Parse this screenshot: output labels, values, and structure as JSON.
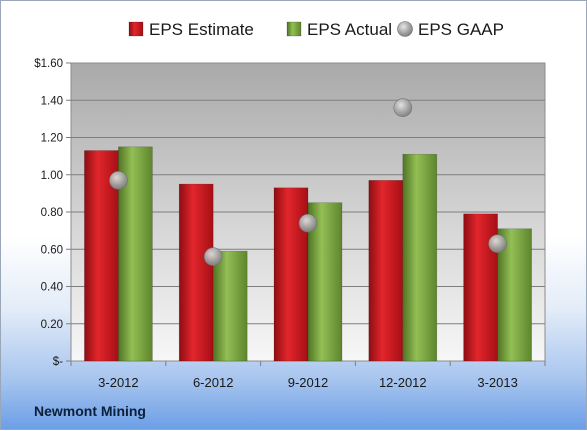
{
  "company_label": "Newmont Mining",
  "chart_data": {
    "type": "bar",
    "title": "",
    "xlabel": "",
    "ylabel": "",
    "categories": [
      "3-2012",
      "6-2012",
      "9-2012",
      "12-2012",
      "3-2013"
    ],
    "series": [
      {
        "name": "EPS Estimate",
        "kind": "bar",
        "color": "#c8161d",
        "values": [
          1.13,
          0.95,
          0.93,
          0.97,
          0.79
        ]
      },
      {
        "name": "EPS Actual",
        "kind": "bar",
        "color": "#77a13b",
        "values": [
          1.15,
          0.59,
          0.85,
          1.11,
          0.71
        ]
      },
      {
        "name": "EPS GAAP",
        "kind": "marker",
        "color": "#a8a8a8",
        "values": [
          0.97,
          0.56,
          0.74,
          1.36,
          0.63
        ]
      }
    ],
    "ylim": [
      0,
      1.6
    ],
    "yticks": [
      0,
      0.2,
      0.4,
      0.6,
      0.8,
      1.0,
      1.2,
      1.4,
      1.6
    ],
    "ytick_labels": [
      "$-",
      "0.20",
      "0.40",
      "0.60",
      "0.80",
      "1.00",
      "1.20",
      "1.40",
      "$1.60"
    ],
    "grid": true,
    "legend_position": "top"
  }
}
